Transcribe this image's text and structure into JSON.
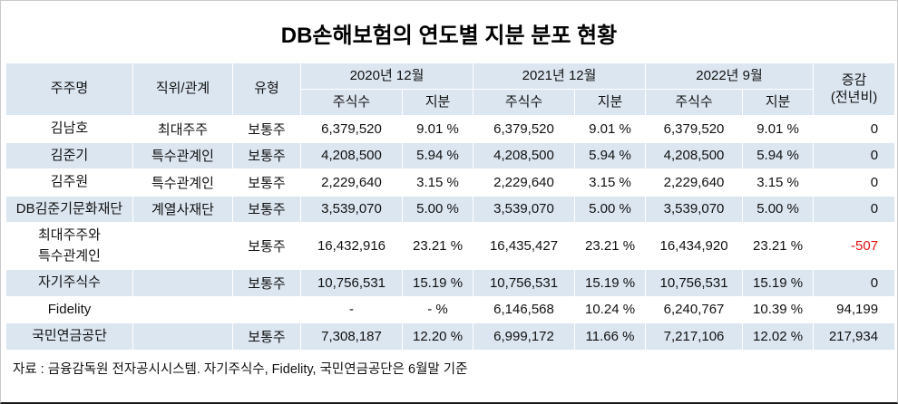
{
  "title": "DB손해보험의 연도별 지분 분포 현황",
  "header": {
    "shareholder": "주주명",
    "position": "직위/관계",
    "type": "유형",
    "periods": [
      "2020년 12월",
      "2021년 12월",
      "2022년 9월"
    ],
    "shares": "주식수",
    "stake": "지분",
    "change_line1": "증감",
    "change_line2": "(전년비)"
  },
  "colors": {
    "header_bg": "#dce6f1",
    "negative_text": "#e01010"
  },
  "chart_data": {
    "type": "table",
    "title": "DB손해보험의 연도별 지분 분포 현황",
    "columns": [
      "주주명",
      "직위/관계",
      "유형",
      "2020년 12월 주식수",
      "2020년 12월 지분",
      "2021년 12월 주식수",
      "2021년 12월 지분",
      "2022년 9월 주식수",
      "2022년 9월 지분",
      "증감(전년비)"
    ],
    "rows": [
      {
        "name": "김남호",
        "position": "최대주주",
        "type": "보통주",
        "cells": [
          "6,379,520",
          "9.01 %",
          "6,379,520",
          "9.01 %",
          "6,379,520",
          "9.01 %"
        ],
        "change": "0"
      },
      {
        "name": "김준기",
        "position": "특수관계인",
        "type": "보통주",
        "cells": [
          "4,208,500",
          "5.94 %",
          "4,208,500",
          "5.94 %",
          "4,208,500",
          "5.94 %"
        ],
        "change": "0"
      },
      {
        "name": "김주원",
        "position": "특수관계인",
        "type": "보통주",
        "cells": [
          "2,229,640",
          "3.15 %",
          "2,229,640",
          "3.15 %",
          "2,229,640",
          "3.15 %"
        ],
        "change": "0"
      },
      {
        "name": "DB김준기문화재단",
        "position": "계열사재단",
        "type": "보통주",
        "cells": [
          "3,539,070",
          "5.00 %",
          "3,539,070",
          "5.00 %",
          "3,539,070",
          "5.00 %"
        ],
        "change": "0"
      },
      {
        "name": "최대주주와\n특수관계인",
        "position": "",
        "type": "보통주",
        "cells": [
          "16,432,916",
          "23.21 %",
          "16,435,427",
          "23.21 %",
          "16,434,920",
          "23.21 %"
        ],
        "change": "-507"
      },
      {
        "name": "자기주식수",
        "position": "",
        "type": "보통주",
        "cells": [
          "10,756,531",
          "15.19 %",
          "10,756,531",
          "15.19 %",
          "10,756,531",
          "15.19 %"
        ],
        "change": "0"
      },
      {
        "name": "Fidelity",
        "position": "",
        "type": "",
        "cells": [
          "-",
          "- %",
          "6,146,568",
          "10.24 %",
          "6,240,767",
          "10.39 %"
        ],
        "change": "94,199"
      },
      {
        "name": "국민연금공단",
        "position": "",
        "type": "보통주",
        "cells": [
          "7,308,187",
          "12.20 %",
          "6,999,172",
          "11.66 %",
          "7,217,106",
          "12.02 %"
        ],
        "change": "217,934"
      }
    ]
  },
  "footer": "자료 : 금융감독원 전자공시시스템. 자기주식수, Fidelity, 국민연금공단은 6월말 기준"
}
